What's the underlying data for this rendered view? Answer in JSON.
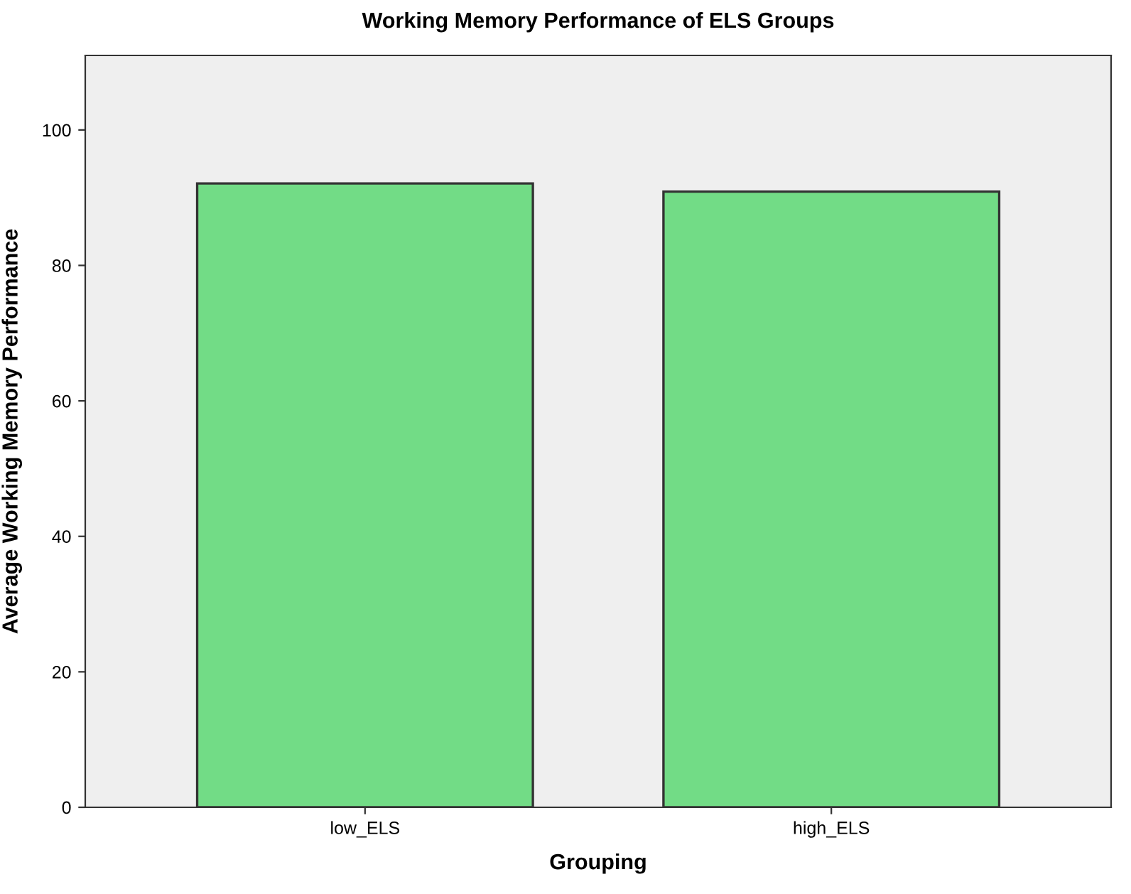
{
  "chart_data": {
    "type": "bar",
    "title": "Working Memory Performance of ELS Groups",
    "xlabel": "Grouping",
    "ylabel": "Average Working Memory Performance",
    "categories": [
      "low_ELS",
      "high_ELS"
    ],
    "values": [
      92.1,
      90.9
    ],
    "color": "#72dc86",
    "ylim": [
      0,
      111
    ],
    "yticks": [
      0,
      20,
      40,
      60,
      80,
      100
    ],
    "grid": false,
    "legend": false
  }
}
